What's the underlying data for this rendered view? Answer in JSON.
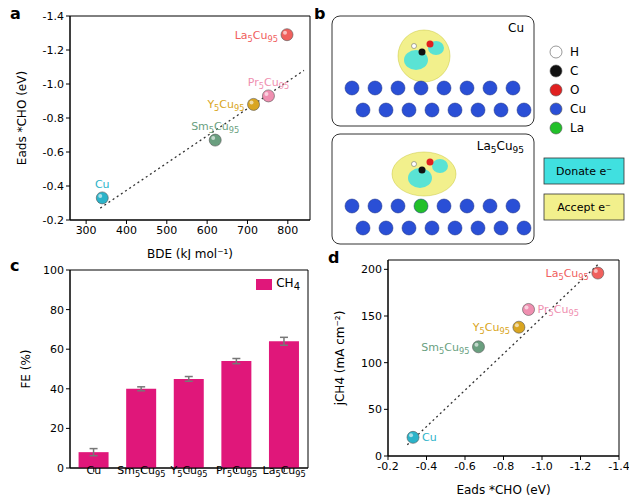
{
  "chart_data": [
    {
      "panel": "a",
      "type": "scatter",
      "xlabel": "BDE (kJ mol⁻¹)",
      "ylabel": "Eads *CHO (eV)",
      "xlim": [
        260,
        855
      ],
      "xticks": [
        300,
        400,
        500,
        600,
        700,
        800
      ],
      "ylim": [
        -0.2,
        -1.4
      ],
      "yticks": [
        -0.2,
        -0.4,
        -0.6,
        -0.8,
        {
          "value": -1,
          "label": "-1.0"
        },
        -1.2,
        -1.4
      ],
      "series": [
        {
          "type": "scatter",
          "marker": "circle",
          "labels": [
            "Cu",
            "Sm5Cu95",
            "Y5Cu95",
            "Pr5Cu95",
            "La5Cu95"
          ],
          "colors": [
            "#2bb3c9",
            "#6a9f7f",
            "#d9a521",
            "#ef8fb0",
            "#f0605d"
          ],
          "x": [
            340,
            620,
            715,
            752,
            798
          ],
          "values": [
            -0.33,
            -0.67,
            -0.88,
            -0.93,
            -1.29
          ]
        },
        {
          "type": "line",
          "line_style": "dotted",
          "color": "#333333",
          "x": [
            335,
            840
          ],
          "values": [
            -0.27,
            -1.08
          ]
        }
      ]
    },
    {
      "panel": "c",
      "type": "bar",
      "ylabel": "FE (%)",
      "categories": [
        "Cu",
        "Sm5Cu95",
        "Y5Cu95",
        "Pr5Cu95",
        "La5Cu95"
      ],
      "ylim": [
        0,
        100
      ],
      "yticks": [
        0,
        20,
        40,
        60,
        80,
        100
      ],
      "legend": "upper right",
      "series": [
        {
          "name": "CH4",
          "color": "#e0177a",
          "values": [
            8,
            40,
            45,
            54,
            64
          ],
          "errors": [
            1.8,
            1.0,
            1.2,
            1.3,
            2.0
          ]
        }
      ]
    },
    {
      "panel": "d",
      "type": "scatter",
      "xlabel": "Eads *CHO (eV)",
      "ylabel": "jCH4 (mA cm⁻²)",
      "xlim": [
        -0.2,
        -1.4
      ],
      "xticks": [
        -0.2,
        -0.4,
        -0.6,
        -0.8,
        {
          "value": -1,
          "label": "-1.0"
        },
        -1.2,
        -1.4
      ],
      "ylim": [
        0,
        210
      ],
      "yticks": [
        0,
        50,
        100,
        150,
        200
      ],
      "series": [
        {
          "type": "scatter",
          "marker": "circle",
          "labels": [
            "Cu",
            "Sm5Cu95",
            "Y5Cu95",
            "Pr5Cu95",
            "La5Cu95"
          ],
          "colors": [
            "#2bb3c9",
            "#6a9f7f",
            "#d9a521",
            "#ef8fb0",
            "#f0605d"
          ],
          "x": [
            -0.33,
            -0.67,
            -0.88,
            -0.93,
            -1.29
          ],
          "values": [
            20,
            117,
            138,
            157,
            196
          ]
        },
        {
          "type": "line",
          "line_style": "dotted",
          "color": "#333333",
          "x": [
            -0.3,
            -1.3
          ],
          "values": [
            12,
            207
          ]
        }
      ]
    }
  ],
  "diagram": {
    "panel": "b",
    "frames": [
      "Cu",
      "La5Cu95"
    ],
    "atoms": [
      {
        "label": "H",
        "color": "#ffffff"
      },
      {
        "label": "C",
        "color": "#111111"
      },
      {
        "label": "O",
        "color": "#e02020"
      },
      {
        "label": "Cu",
        "color": "#2a4fd6"
      },
      {
        "label": "La",
        "color": "#22c02a"
      }
    ],
    "density": [
      {
        "label": "Donate e⁻",
        "color": "#40e0e0"
      },
      {
        "label": "Accept e⁻",
        "color": "#f2f08c"
      }
    ]
  }
}
